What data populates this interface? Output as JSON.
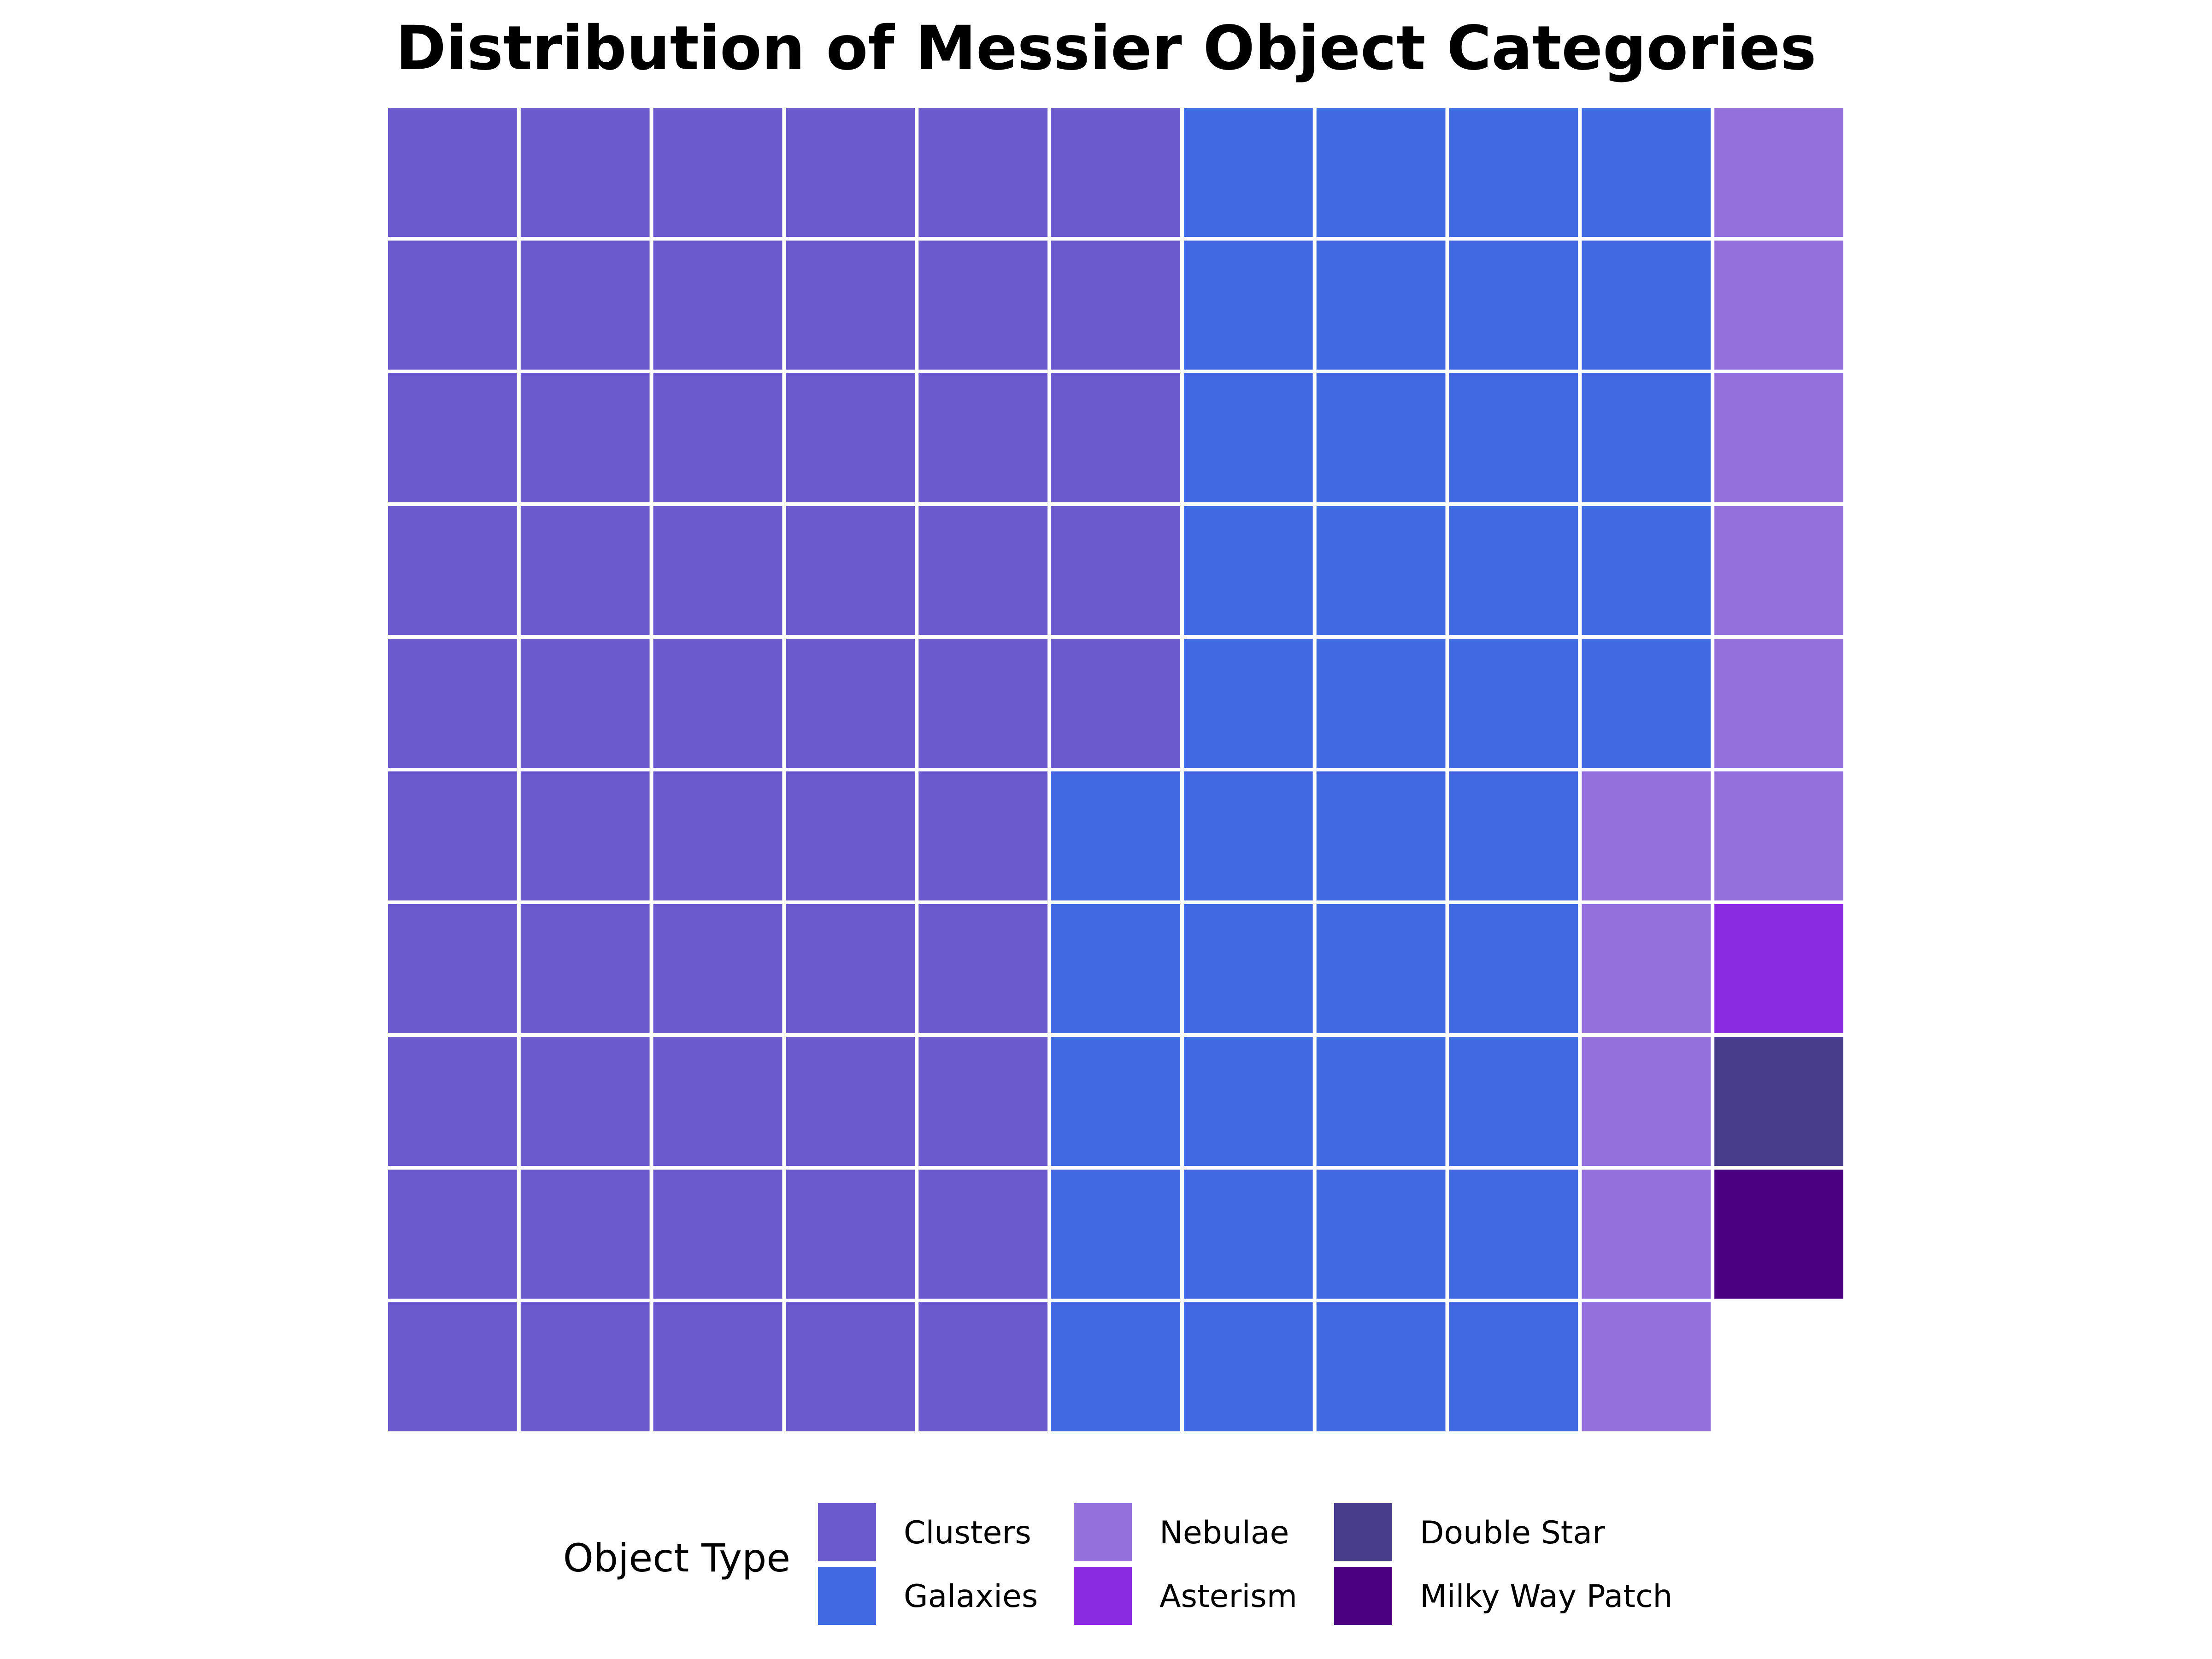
{
  "chart_data": {
    "type": "waffle",
    "title": "Distribution of Messier Object Categories",
    "grid": {
      "rows": 10,
      "columns": 11,
      "fill_order": "column-major, top-to-bottom, left-to-right"
    },
    "legend": {
      "title": "Object Type",
      "placement": "bottom",
      "columns": 3
    },
    "categories": [
      {
        "name": "Clusters",
        "value": 55,
        "color": "#6A5ACD"
      },
      {
        "name": "Galaxies",
        "value": 40,
        "color": "#4169E1"
      },
      {
        "name": "Nebulae",
        "value": 11,
        "color": "#9370DB"
      },
      {
        "name": "Asterism",
        "value": 1,
        "color": "#8A2BE2"
      },
      {
        "name": "Double Star",
        "value": 1,
        "color": "#483D8B"
      },
      {
        "name": "Milky Way Patch",
        "value": 1,
        "color": "#4B0082"
      }
    ],
    "tile_order": [
      "Clusters",
      "Galaxies",
      "Nebulae",
      "Asterism",
      "Double Star",
      "Milky Way Patch"
    ]
  }
}
